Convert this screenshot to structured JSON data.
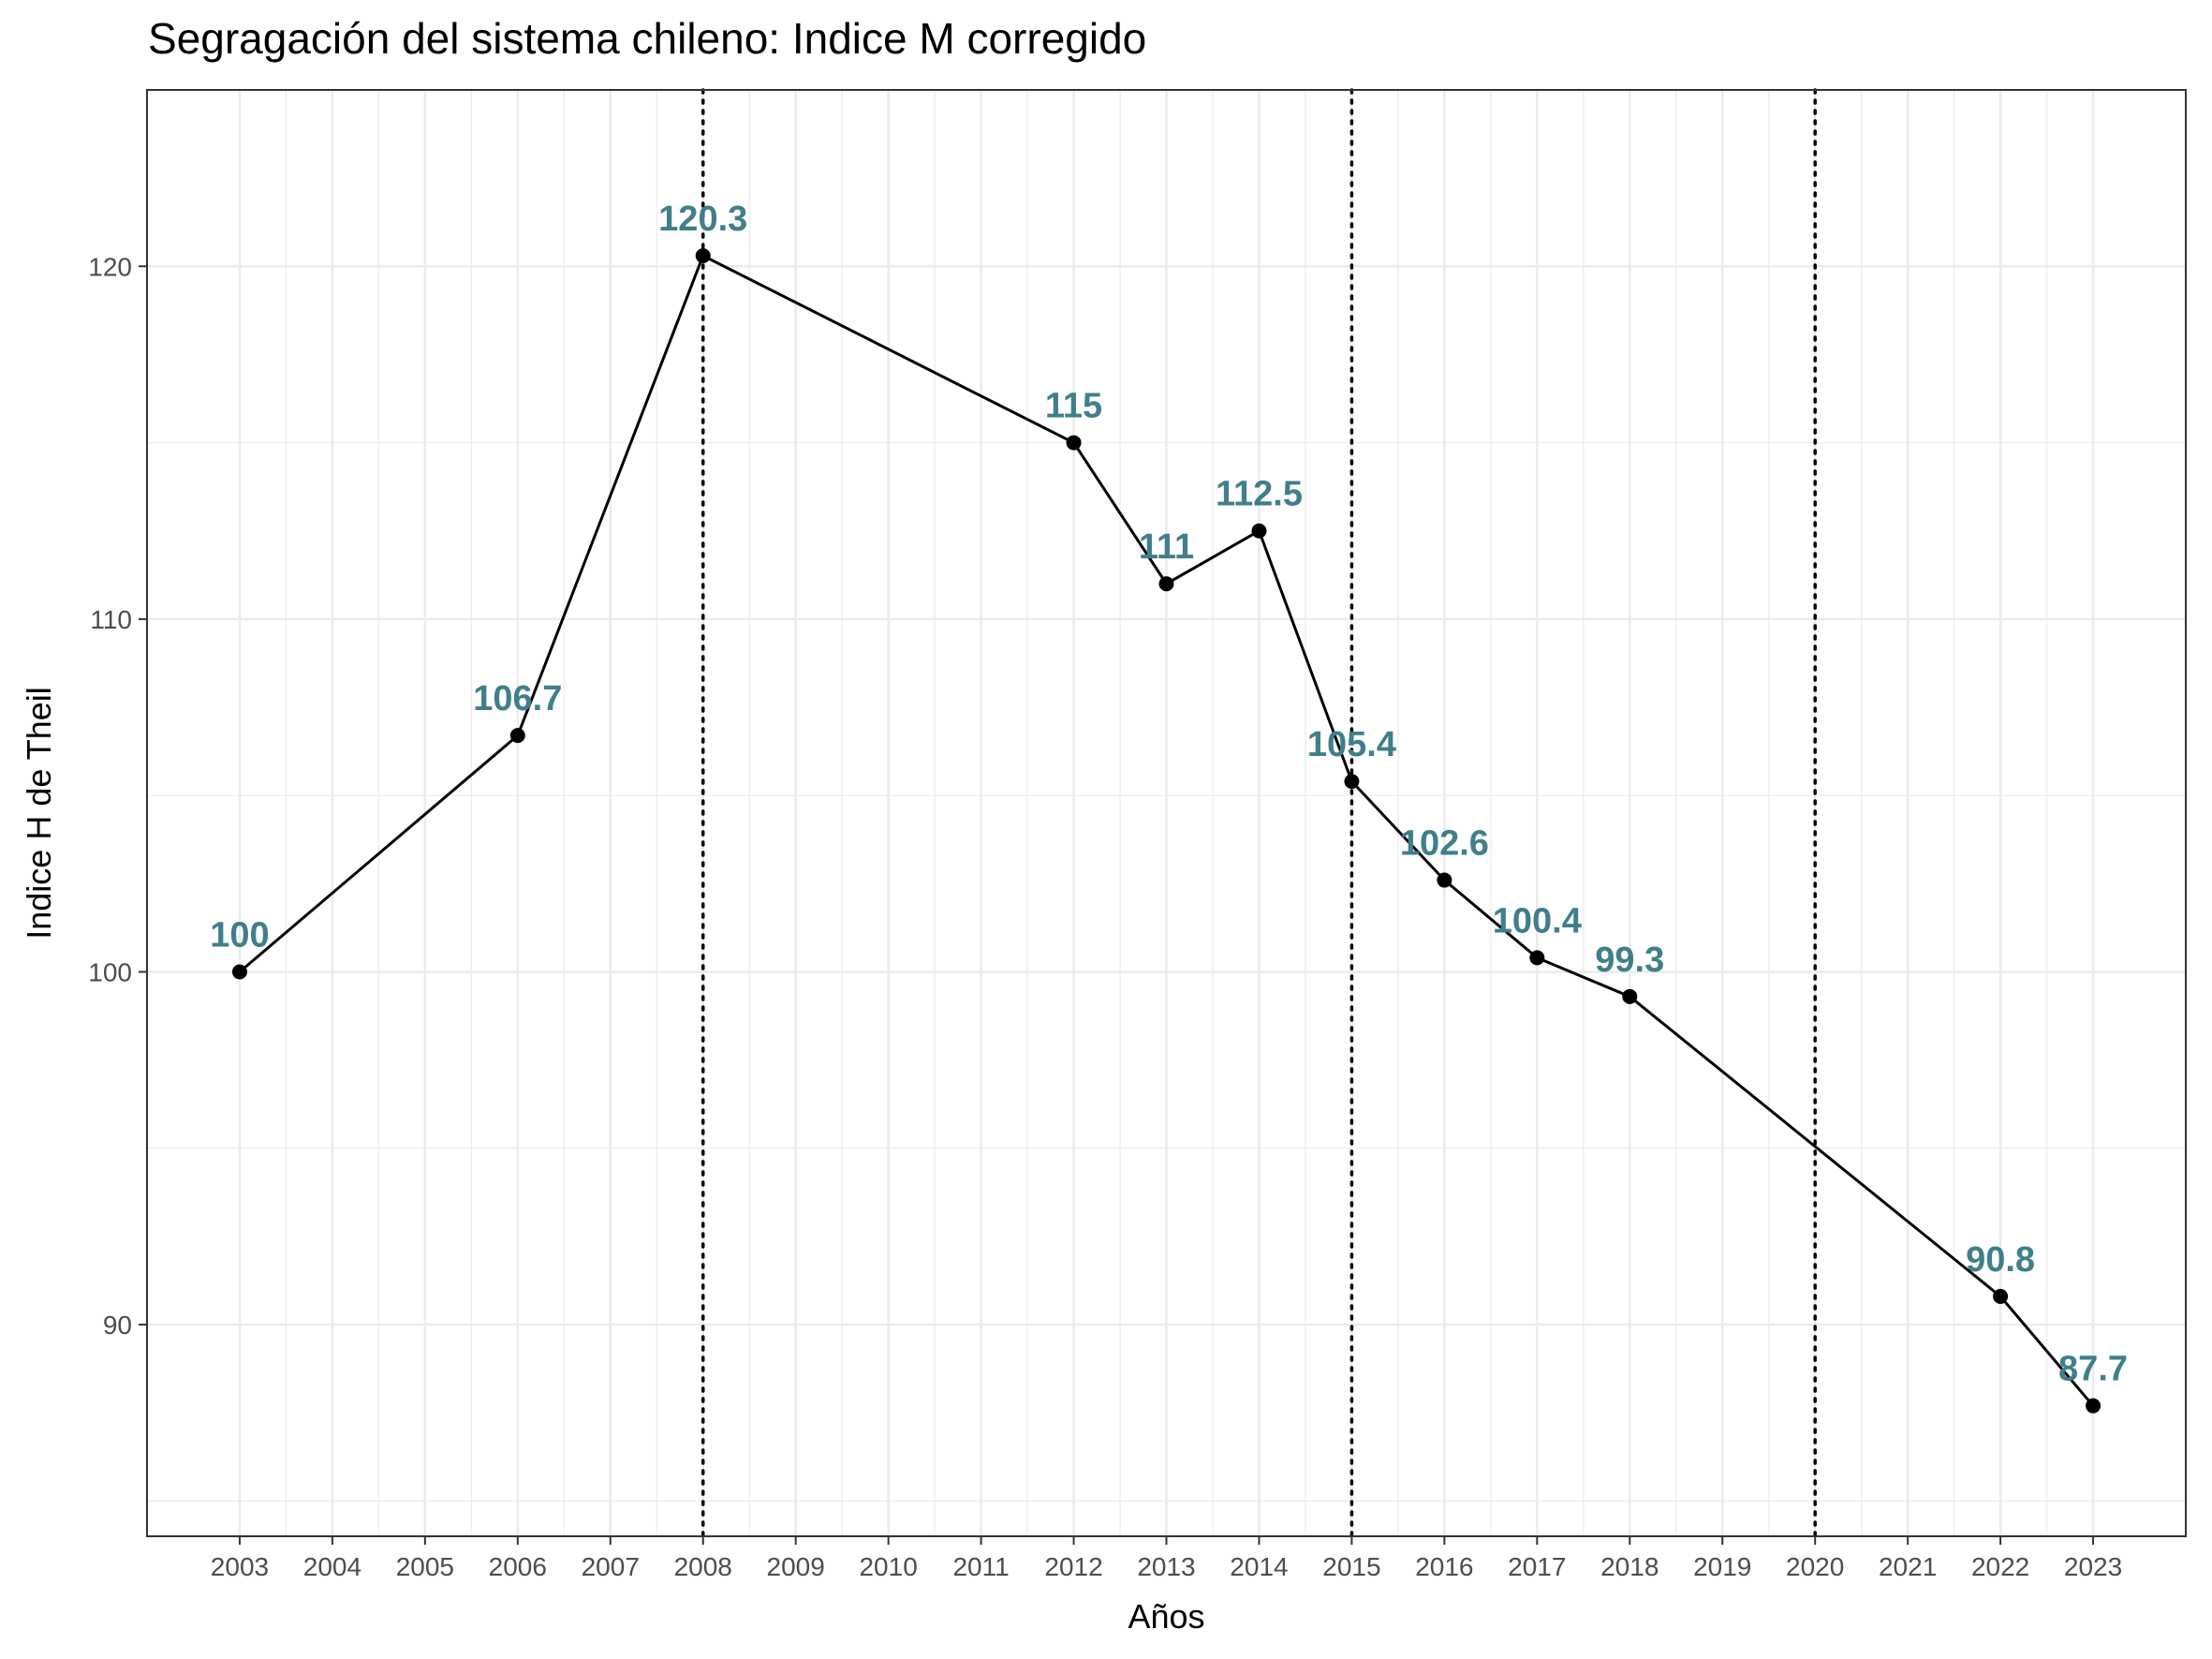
{
  "chart_data": {
    "type": "line",
    "title": "Segragación del sistema chileno: Indice M corregido",
    "xlabel": "Años",
    "ylabel": "Indice H de Theil",
    "x_ticks": [
      "2003",
      "2004",
      "2005",
      "2006",
      "2007",
      "2008",
      "2009",
      "2010",
      "2011",
      "2012",
      "2013",
      "2014",
      "2015",
      "2016",
      "2017",
      "2018",
      "2019",
      "2020",
      "2021",
      "2022",
      "2023"
    ],
    "y_ticks": [
      "90",
      "100",
      "110",
      "120"
    ],
    "xlim": [
      2002,
      2024
    ],
    "ylim": [
      84,
      125
    ],
    "vertical_reference_lines": [
      2008,
      2015,
      2020
    ],
    "grid": true,
    "series": [
      {
        "x": [
          2003,
          2006,
          2008,
          2012,
          2013,
          2014,
          2015,
          2016,
          2017,
          2018,
          2022,
          2023
        ],
        "y": [
          100,
          106.7,
          120.3,
          115,
          111,
          112.5,
          105.4,
          102.6,
          100.4,
          99.3,
          90.8,
          87.7
        ],
        "labels": [
          "100",
          "106.7",
          "120.3",
          "115",
          "111",
          "112.5",
          "105.4",
          "102.6",
          "100.4",
          "99.3",
          "90.8",
          "87.7"
        ]
      }
    ],
    "colors": {
      "line": "#000000",
      "label": "#3f7f8a",
      "grid": "#ebebeb"
    }
  }
}
